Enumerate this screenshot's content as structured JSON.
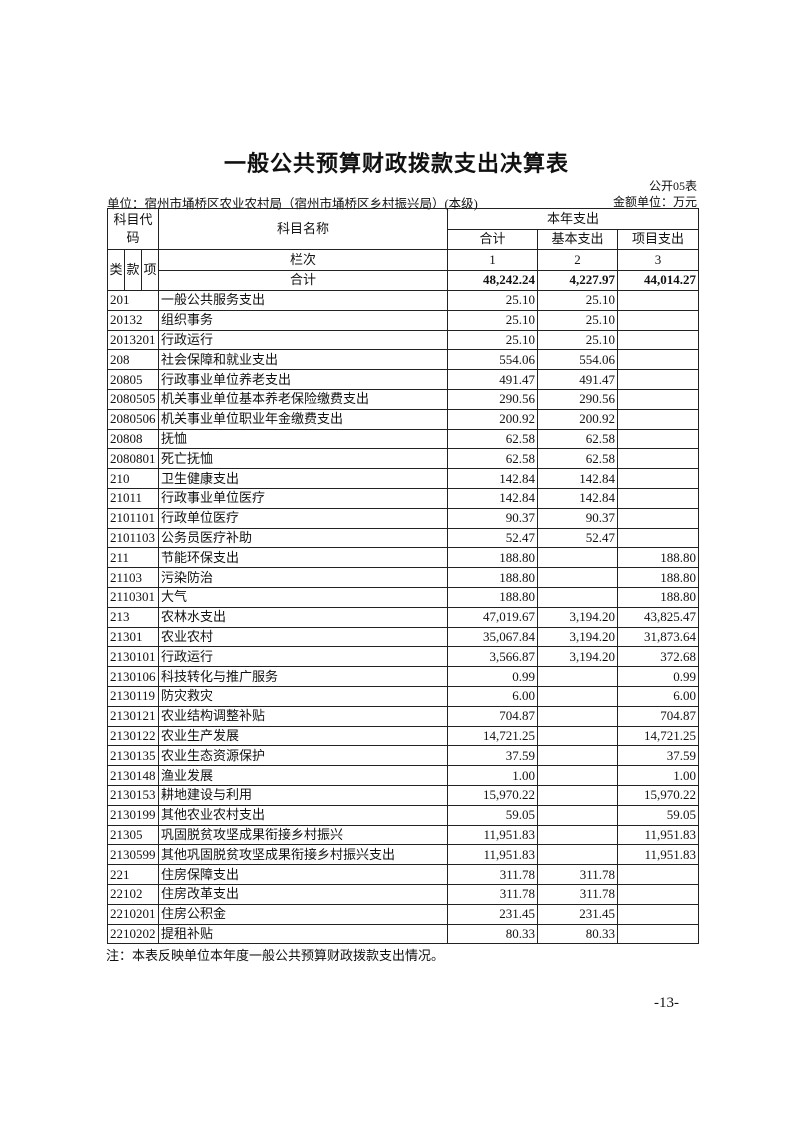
{
  "title": "一般公共预算财政拨款支出决算表",
  "form_no": "公开05表",
  "unit": "单位：宿州市埇桥区农业农村局（宿州市埇桥区乡村振兴局）(本级)",
  "money_unit": "金额单位：万元",
  "header": {
    "code": "科目代码",
    "name": "科目名称",
    "this_year": "本年支出",
    "total": "合计",
    "basic": "基本支出",
    "project": "项目支出",
    "lei": "类",
    "kuan": "款",
    "xiang": "项",
    "column_no": "栏次",
    "col1": "1",
    "col2": "2",
    "col3": "3"
  },
  "totals": {
    "label": "合计",
    "total": "48,242.24",
    "basic": "4,227.97",
    "project": "44,014.27"
  },
  "rows": [
    {
      "code": "201",
      "name": "一般公共服务支出",
      "total": "25.10",
      "basic": "25.10",
      "project": ""
    },
    {
      "code": "20132",
      "name": "组织事务",
      "total": "25.10",
      "basic": "25.10",
      "project": ""
    },
    {
      "code": "2013201",
      "name": "行政运行",
      "total": "25.10",
      "basic": "25.10",
      "project": ""
    },
    {
      "code": "208",
      "name": "社会保障和就业支出",
      "total": "554.06",
      "basic": "554.06",
      "project": ""
    },
    {
      "code": "20805",
      "name": "行政事业单位养老支出",
      "total": "491.47",
      "basic": "491.47",
      "project": ""
    },
    {
      "code": "2080505",
      "name": "机关事业单位基本养老保险缴费支出",
      "total": "290.56",
      "basic": "290.56",
      "project": ""
    },
    {
      "code": "2080506",
      "name": "机关事业单位职业年金缴费支出",
      "total": "200.92",
      "basic": "200.92",
      "project": ""
    },
    {
      "code": "20808",
      "name": "抚恤",
      "total": "62.58",
      "basic": "62.58",
      "project": ""
    },
    {
      "code": "2080801",
      "name": "死亡抚恤",
      "total": "62.58",
      "basic": "62.58",
      "project": ""
    },
    {
      "code": "210",
      "name": "卫生健康支出",
      "total": "142.84",
      "basic": "142.84",
      "project": ""
    },
    {
      "code": "21011",
      "name": "行政事业单位医疗",
      "total": "142.84",
      "basic": "142.84",
      "project": ""
    },
    {
      "code": "2101101",
      "name": "行政单位医疗",
      "total": "90.37",
      "basic": "90.37",
      "project": ""
    },
    {
      "code": "2101103",
      "name": "公务员医疗补助",
      "total": "52.47",
      "basic": "52.47",
      "project": ""
    },
    {
      "code": "211",
      "name": "节能环保支出",
      "total": "188.80",
      "basic": "",
      "project": "188.80"
    },
    {
      "code": "21103",
      "name": "污染防治",
      "total": "188.80",
      "basic": "",
      "project": "188.80"
    },
    {
      "code": "2110301",
      "name": "大气",
      "total": "188.80",
      "basic": "",
      "project": "188.80"
    },
    {
      "code": "213",
      "name": "农林水支出",
      "total": "47,019.67",
      "basic": "3,194.20",
      "project": "43,825.47"
    },
    {
      "code": "21301",
      "name": "农业农村",
      "total": "35,067.84",
      "basic": "3,194.20",
      "project": "31,873.64"
    },
    {
      "code": "2130101",
      "name": "行政运行",
      "total": "3,566.87",
      "basic": "3,194.20",
      "project": "372.68"
    },
    {
      "code": "2130106",
      "name": "科技转化与推广服务",
      "total": "0.99",
      "basic": "",
      "project": "0.99"
    },
    {
      "code": "2130119",
      "name": "防灾救灾",
      "total": "6.00",
      "basic": "",
      "project": "6.00"
    },
    {
      "code": "2130121",
      "name": "农业结构调整补贴",
      "total": "704.87",
      "basic": "",
      "project": "704.87"
    },
    {
      "code": "2130122",
      "name": "农业生产发展",
      "total": "14,721.25",
      "basic": "",
      "project": "14,721.25"
    },
    {
      "code": "2130135",
      "name": "农业生态资源保护",
      "total": "37.59",
      "basic": "",
      "project": "37.59"
    },
    {
      "code": "2130148",
      "name": "渔业发展",
      "total": "1.00",
      "basic": "",
      "project": "1.00"
    },
    {
      "code": "2130153",
      "name": "耕地建设与利用",
      "total": "15,970.22",
      "basic": "",
      "project": "15,970.22"
    },
    {
      "code": "2130199",
      "name": "其他农业农村支出",
      "total": "59.05",
      "basic": "",
      "project": "59.05"
    },
    {
      "code": "21305",
      "name": "巩固脱贫攻坚成果衔接乡村振兴",
      "total": "11,951.83",
      "basic": "",
      "project": "11,951.83"
    },
    {
      "code": "2130599",
      "name": "其他巩固脱贫攻坚成果衔接乡村振兴支出",
      "total": "11,951.83",
      "basic": "",
      "project": "11,951.83"
    },
    {
      "code": "221",
      "name": "住房保障支出",
      "total": "311.78",
      "basic": "311.78",
      "project": ""
    },
    {
      "code": "22102",
      "name": "住房改革支出",
      "total": "311.78",
      "basic": "311.78",
      "project": ""
    },
    {
      "code": "2210201",
      "name": "住房公积金",
      "total": "231.45",
      "basic": "231.45",
      "project": ""
    },
    {
      "code": "2210202",
      "name": "提租补贴",
      "total": "80.33",
      "basic": "80.33",
      "project": ""
    }
  ],
  "note": "注：本表反映单位本年度一般公共预算财政拨款支出情况。",
  "page_number": "-13-"
}
